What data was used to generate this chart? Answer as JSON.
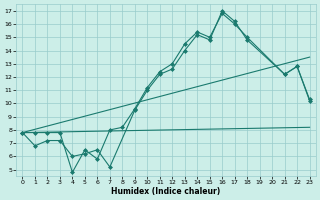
{
  "title": "",
  "xlabel": "Humidex (Indice chaleur)",
  "bg_color": "#cceee8",
  "grid_color": "#99cccc",
  "line_color": "#1a7a6e",
  "xlim": [
    -0.5,
    23.5
  ],
  "ylim": [
    4.5,
    17.5
  ],
  "yticks": [
    5,
    6,
    7,
    8,
    9,
    10,
    11,
    12,
    13,
    14,
    15,
    16,
    17
  ],
  "xticks": [
    0,
    1,
    2,
    3,
    4,
    5,
    6,
    7,
    8,
    9,
    10,
    11,
    12,
    13,
    14,
    15,
    16,
    17,
    18,
    19,
    20,
    21,
    22,
    23
  ],
  "line1_x": [
    0,
    1,
    2,
    3,
    4,
    5,
    6,
    7,
    9,
    10,
    11,
    12,
    13,
    14,
    15,
    16,
    17,
    18,
    21,
    22,
    23
  ],
  "line1_y": [
    7.8,
    6.8,
    7.2,
    7.2,
    6.0,
    6.2,
    6.5,
    5.2,
    9.5,
    11.0,
    12.2,
    12.6,
    14.0,
    15.2,
    14.8,
    17.0,
    16.2,
    14.8,
    12.2,
    12.8,
    10.2
  ],
  "line2_x": [
    0,
    1,
    2,
    3,
    4,
    5,
    6,
    7,
    8,
    9,
    10,
    11,
    12,
    13,
    14,
    15,
    16,
    17,
    18,
    21,
    22,
    23
  ],
  "line2_y": [
    7.8,
    7.8,
    7.8,
    7.8,
    4.8,
    6.5,
    5.8,
    8.0,
    8.2,
    9.6,
    11.2,
    12.4,
    13.0,
    14.5,
    15.4,
    15.0,
    16.8,
    16.0,
    15.0,
    12.2,
    12.8,
    10.3
  ],
  "line3_x": [
    0,
    23
  ],
  "line3_y": [
    7.8,
    8.2
  ],
  "line4_x": [
    0,
    23
  ],
  "line4_y": [
    7.8,
    13.5
  ]
}
